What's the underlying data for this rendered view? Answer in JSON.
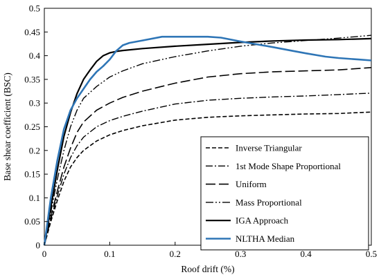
{
  "chart_data": {
    "type": "line",
    "title": "",
    "xlabel": "Roof drift (%)",
    "ylabel": "Base shear coefficient (BSC)",
    "xlim": [
      0,
      0.5
    ],
    "ylim": [
      0,
      0.5
    ],
    "xticks": [
      0,
      0.1,
      0.2,
      0.3,
      0.4,
      0.5
    ],
    "yticks": [
      0,
      0.05,
      0.1,
      0.15,
      0.2,
      0.25,
      0.3,
      0.35,
      0.4,
      0.45,
      0.5
    ],
    "xtick_labels": [
      "0",
      "0.1",
      "0.2",
      "0.3",
      "0.4",
      "0.5"
    ],
    "ytick_labels": [
      "0",
      "0.05",
      "0.1",
      "0.15",
      "0.2",
      "0.25",
      "0.3",
      "0.35",
      "0.4",
      "0.45",
      "0.5"
    ],
    "grid": false,
    "legend_position": "bottom-right",
    "series": [
      {
        "name": "Inverse Triangular",
        "color": "#000000",
        "dash": "dashed",
        "x": [
          0,
          0.01,
          0.02,
          0.03,
          0.04,
          0.05,
          0.06,
          0.08,
          0.1,
          0.12,
          0.15,
          0.2,
          0.25,
          0.3,
          0.35,
          0.4,
          0.45,
          0.5
        ],
        "y": [
          0,
          0.05,
          0.095,
          0.135,
          0.165,
          0.185,
          0.2,
          0.22,
          0.233,
          0.242,
          0.252,
          0.264,
          0.27,
          0.273,
          0.275,
          0.277,
          0.278,
          0.281
        ]
      },
      {
        "name": "1st Mode Shape Proportional",
        "color": "#000000",
        "dash": "dashdot",
        "x": [
          0,
          0.01,
          0.02,
          0.03,
          0.04,
          0.05,
          0.06,
          0.08,
          0.1,
          0.12,
          0.15,
          0.2,
          0.25,
          0.3,
          0.35,
          0.4,
          0.45,
          0.5
        ],
        "y": [
          0,
          0.055,
          0.105,
          0.15,
          0.185,
          0.21,
          0.228,
          0.25,
          0.263,
          0.272,
          0.283,
          0.298,
          0.306,
          0.31,
          0.313,
          0.315,
          0.318,
          0.321
        ]
      },
      {
        "name": "Uniform",
        "color": "#000000",
        "dash": "longdash",
        "x": [
          0,
          0.01,
          0.02,
          0.03,
          0.04,
          0.05,
          0.06,
          0.08,
          0.1,
          0.12,
          0.15,
          0.2,
          0.25,
          0.3,
          0.35,
          0.4,
          0.45,
          0.5
        ],
        "y": [
          0,
          0.06,
          0.115,
          0.165,
          0.205,
          0.238,
          0.26,
          0.285,
          0.3,
          0.312,
          0.325,
          0.342,
          0.355,
          0.362,
          0.366,
          0.368,
          0.37,
          0.375
        ]
      },
      {
        "name": "Mass Proportional",
        "color": "#000000",
        "dash": "dashdotdot",
        "x": [
          0,
          0.01,
          0.02,
          0.03,
          0.04,
          0.05,
          0.06,
          0.08,
          0.1,
          0.12,
          0.15,
          0.2,
          0.25,
          0.3,
          0.35,
          0.4,
          0.45,
          0.5
        ],
        "y": [
          0,
          0.07,
          0.14,
          0.2,
          0.25,
          0.285,
          0.31,
          0.335,
          0.355,
          0.368,
          0.383,
          0.398,
          0.41,
          0.42,
          0.427,
          0.432,
          0.437,
          0.443
        ]
      },
      {
        "name": "IGA Approach",
        "color": "#000000",
        "dash": "solid",
        "x": [
          0,
          0.01,
          0.02,
          0.03,
          0.04,
          0.05,
          0.06,
          0.07,
          0.08,
          0.09,
          0.1,
          0.11,
          0.12,
          0.15,
          0.2,
          0.25,
          0.3,
          0.35,
          0.4,
          0.45,
          0.5
        ],
        "y": [
          0,
          0.08,
          0.16,
          0.23,
          0.28,
          0.32,
          0.35,
          0.37,
          0.388,
          0.4,
          0.406,
          0.409,
          0.411,
          0.415,
          0.42,
          0.424,
          0.428,
          0.431,
          0.433,
          0.434,
          0.436
        ]
      },
      {
        "name": "NLTHA Median",
        "color": "#2e75b6",
        "dash": "solid",
        "x": [
          0,
          0.005,
          0.01,
          0.02,
          0.03,
          0.04,
          0.05,
          0.06,
          0.07,
          0.08,
          0.09,
          0.1,
          0.11,
          0.12,
          0.13,
          0.15,
          0.18,
          0.2,
          0.22,
          0.25,
          0.27,
          0.3,
          0.32,
          0.35,
          0.38,
          0.4,
          0.43,
          0.45,
          0.48,
          0.5
        ],
        "y": [
          0,
          0.05,
          0.1,
          0.18,
          0.245,
          0.285,
          0.31,
          0.33,
          0.35,
          0.366,
          0.378,
          0.392,
          0.41,
          0.422,
          0.427,
          0.432,
          0.44,
          0.44,
          0.44,
          0.44,
          0.438,
          0.43,
          0.425,
          0.418,
          0.41,
          0.405,
          0.398,
          0.395,
          0.392,
          0.39
        ]
      }
    ]
  }
}
